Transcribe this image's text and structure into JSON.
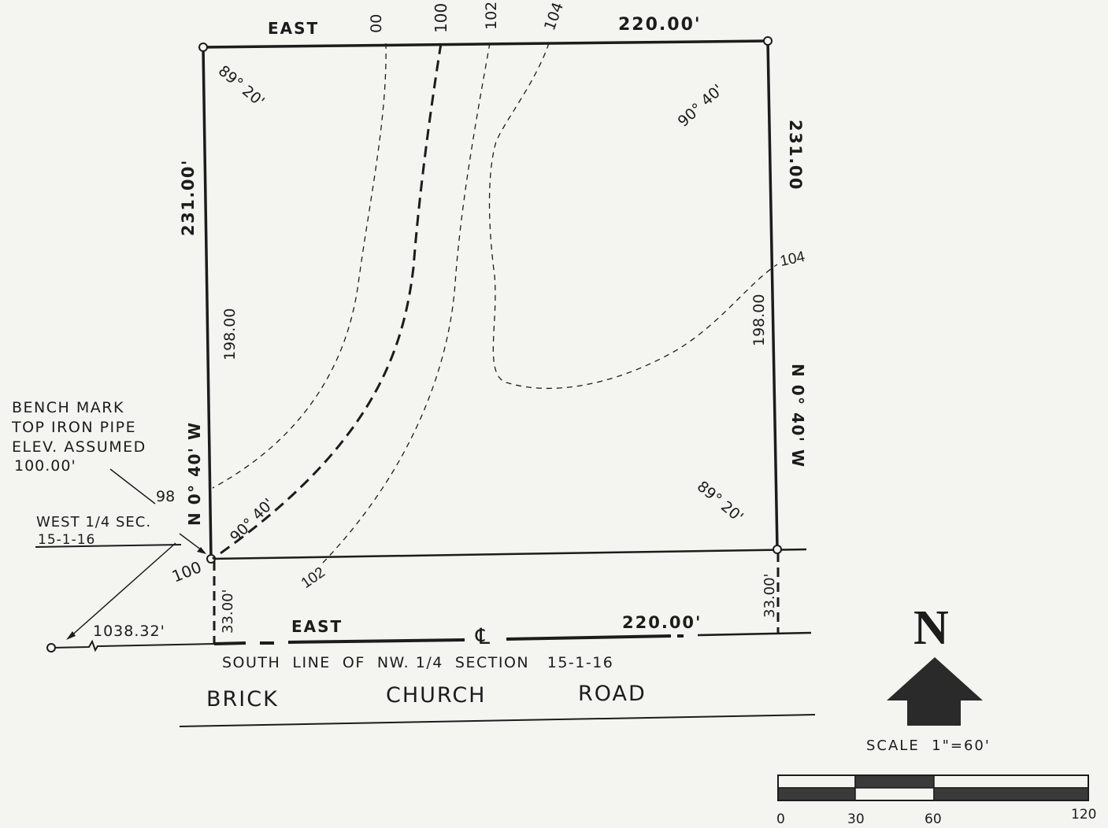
{
  "north_boundary": {
    "direction": "EAST",
    "distance": "220.00'"
  },
  "south_road_line": {
    "direction": "EAST",
    "distance": "220.00'"
  },
  "west_boundary": {
    "bearing": "N 0° 40' W",
    "distance": "231.00'",
    "inner_distance": "198.00",
    "road_offset": "33.00'"
  },
  "east_boundary": {
    "bearing": "N 0° 40' W",
    "distance": "231.00",
    "inner_distance": "198.00",
    "road_offset": "33.00'"
  },
  "angles": {
    "nw": "89° 20'",
    "ne": "90° 40'",
    "sw": "90° 40'",
    "se": "89° 20'"
  },
  "contours": {
    "top_1": "00",
    "top_2": "100",
    "top_3": "102",
    "top_4": "104",
    "right_104": "104",
    "left_98": "98",
    "bottom_100": "100",
    "bottom_102": "102"
  },
  "bench_mark": {
    "line1": "BENCH MARK",
    "line2": "TOP IRON PIPE",
    "line3": "ELEV. ASSUMED",
    "line4": "100.00'"
  },
  "west_quarter": {
    "line1": "WEST 1/4 SEC.",
    "line2": "15-1-16"
  },
  "tie_distance": "1038.32'",
  "centerline_symbol": "℄",
  "south_line_text": "SOUTH  LINE  OF  NW. 1/4  SECTION   15-1-16",
  "road_name": {
    "word1": "BRICK",
    "word2": "CHURCH",
    "word3": "ROAD"
  },
  "north_arrow_label": "N",
  "scale": {
    "text": "SCALE  1\"=60'",
    "ticks": [
      "0",
      "30",
      "60",
      "120"
    ]
  },
  "colors": {
    "ink": "#1c1c1c",
    "paper": "#f4f4f1"
  }
}
